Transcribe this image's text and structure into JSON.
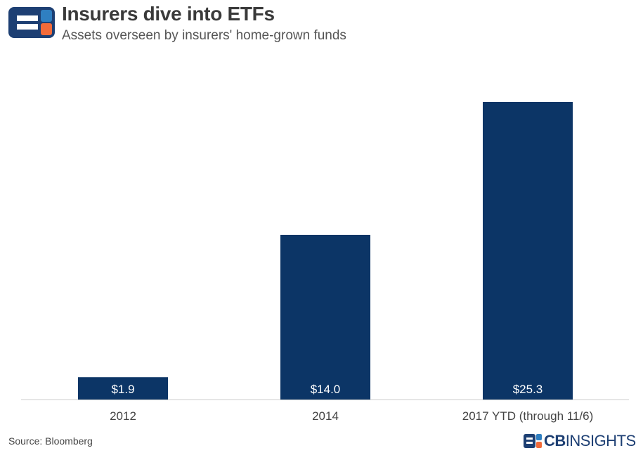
{
  "header": {
    "title": "Insurers dive into ETFs",
    "subtitle": "Assets overseen by insurers' home-grown funds"
  },
  "footer": {
    "source": "Source: Bloomberg",
    "brand_bold": "CB",
    "brand_light": "INSIGHTS"
  },
  "colors": {
    "bar": "#0c3566",
    "label": "#ffffff",
    "axis": "#cccccc",
    "tick_text": "#444444",
    "logo_navy": "#1d3f73",
    "logo_orange": "#f26b3a",
    "logo_blue": "#2f7fc1"
  },
  "chart_data": {
    "type": "bar",
    "title": "Insurers dive into ETFs",
    "subtitle": "Assets overseen by insurers' home-grown funds",
    "categories": [
      "2012",
      "2014",
      "2017 YTD (through 11/6)"
    ],
    "values": [
      1.9,
      14.0,
      25.3
    ],
    "value_labels": [
      "$1.9",
      "$14.0",
      "$25.3"
    ],
    "xlabel": "",
    "ylabel": "",
    "ylim": [
      0,
      30
    ],
    "grid": false,
    "legend": "none"
  }
}
